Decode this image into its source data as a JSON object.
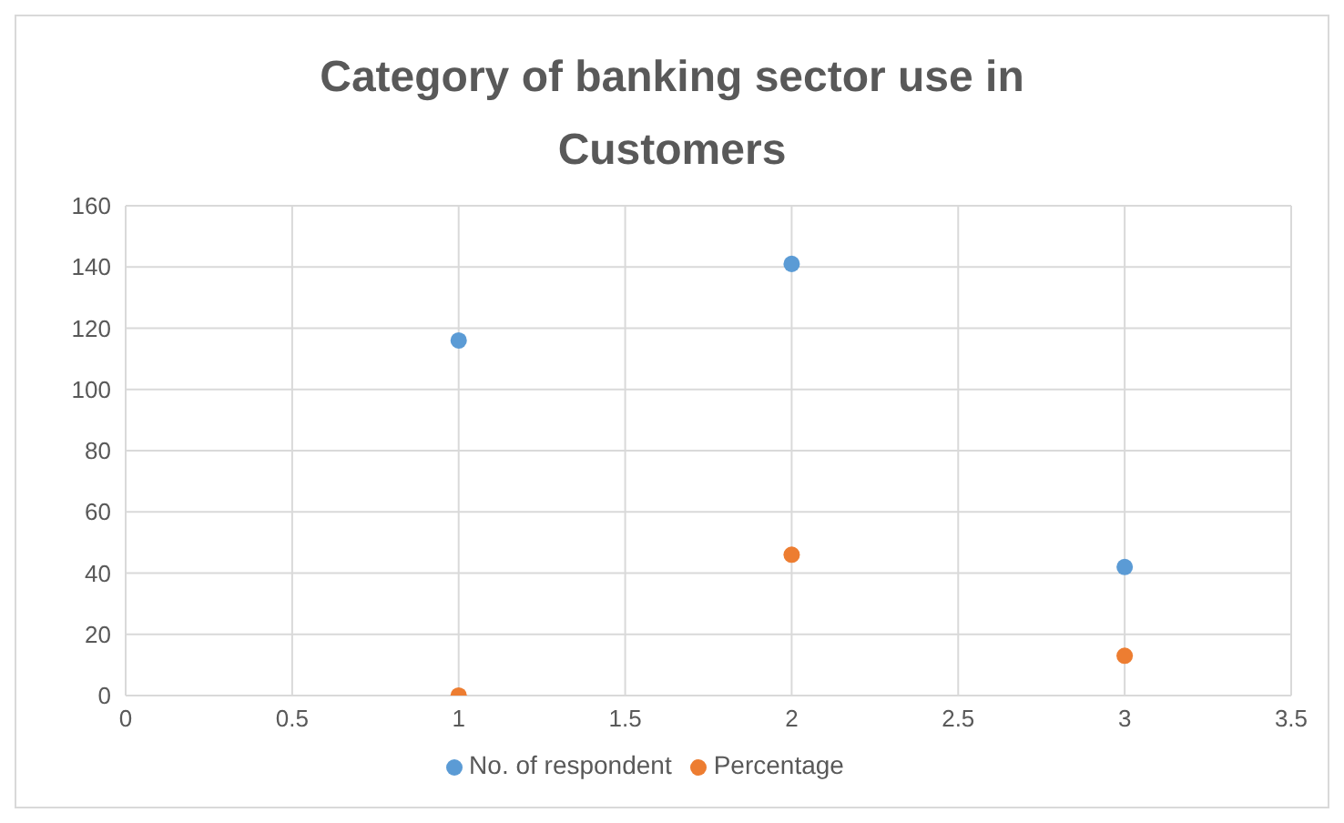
{
  "chart_data": {
    "type": "scatter",
    "title": "Category of banking sector use in Customers",
    "x": [
      1,
      2,
      3
    ],
    "series": [
      {
        "name": "No. of respondent",
        "color": "#5b9bd5",
        "values": [
          116,
          141,
          42
        ]
      },
      {
        "name": "Percentage",
        "color": "#ed7d31",
        "values": [
          0,
          46,
          13
        ]
      }
    ],
    "xlim": [
      0,
      3.5
    ],
    "xticks": [
      0,
      0.5,
      1,
      1.5,
      2,
      2.5,
      3,
      3.5
    ],
    "ylim": [
      0,
      160
    ],
    "yticks": [
      0,
      20,
      40,
      60,
      80,
      100,
      120,
      140,
      160
    ],
    "grid": true,
    "legend": "bottom",
    "marker": "circle"
  }
}
